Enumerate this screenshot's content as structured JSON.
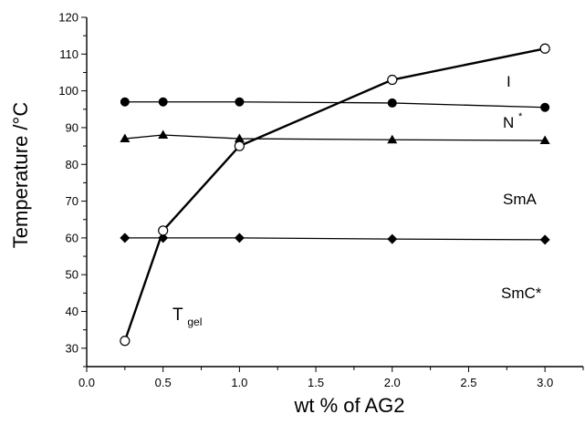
{
  "chart_data": {
    "type": "line",
    "xlabel": "wt % of AG2",
    "ylabel": "Temperature /°C",
    "xlim": [
      0.0,
      3.25
    ],
    "ylim": [
      25,
      120
    ],
    "x_ticks": [
      "0.0",
      "0.5",
      "1.0",
      "1.5",
      "2.0",
      "2.5",
      "3.0"
    ],
    "y_ticks": [
      "30",
      "40",
      "50",
      "60",
      "70",
      "80",
      "90",
      "100",
      "110",
      "120"
    ],
    "grid": false,
    "series": [
      {
        "marker": "filled-circle",
        "points": [
          [
            0.25,
            97
          ],
          [
            0.5,
            97
          ],
          [
            1.0,
            97
          ],
          [
            2.0,
            96.7
          ],
          [
            3.0,
            95.5
          ]
        ]
      },
      {
        "marker": "filled-triangle",
        "points": [
          [
            0.25,
            87
          ],
          [
            0.5,
            88
          ],
          [
            1.0,
            87
          ],
          [
            2.0,
            86.7
          ],
          [
            3.0,
            86.5
          ]
        ]
      },
      {
        "marker": "filled-diamond",
        "points": [
          [
            0.25,
            60
          ],
          [
            0.5,
            60
          ],
          [
            1.0,
            60
          ],
          [
            2.0,
            59.7
          ],
          [
            3.0,
            59.5
          ]
        ]
      },
      {
        "marker": "open-circle",
        "thick": true,
        "points": [
          [
            0.25,
            32
          ],
          [
            0.5,
            62
          ],
          [
            1.0,
            85
          ],
          [
            2.0,
            103
          ],
          [
            3.0,
            111.5
          ]
        ]
      }
    ],
    "annotations": {
      "i_label": "I",
      "n_label": "N",
      "n_sup": "*",
      "sma_label": "SmA",
      "smc_label": "SmC*",
      "tgel_main": "T",
      "tgel_sub": "gel"
    }
  }
}
